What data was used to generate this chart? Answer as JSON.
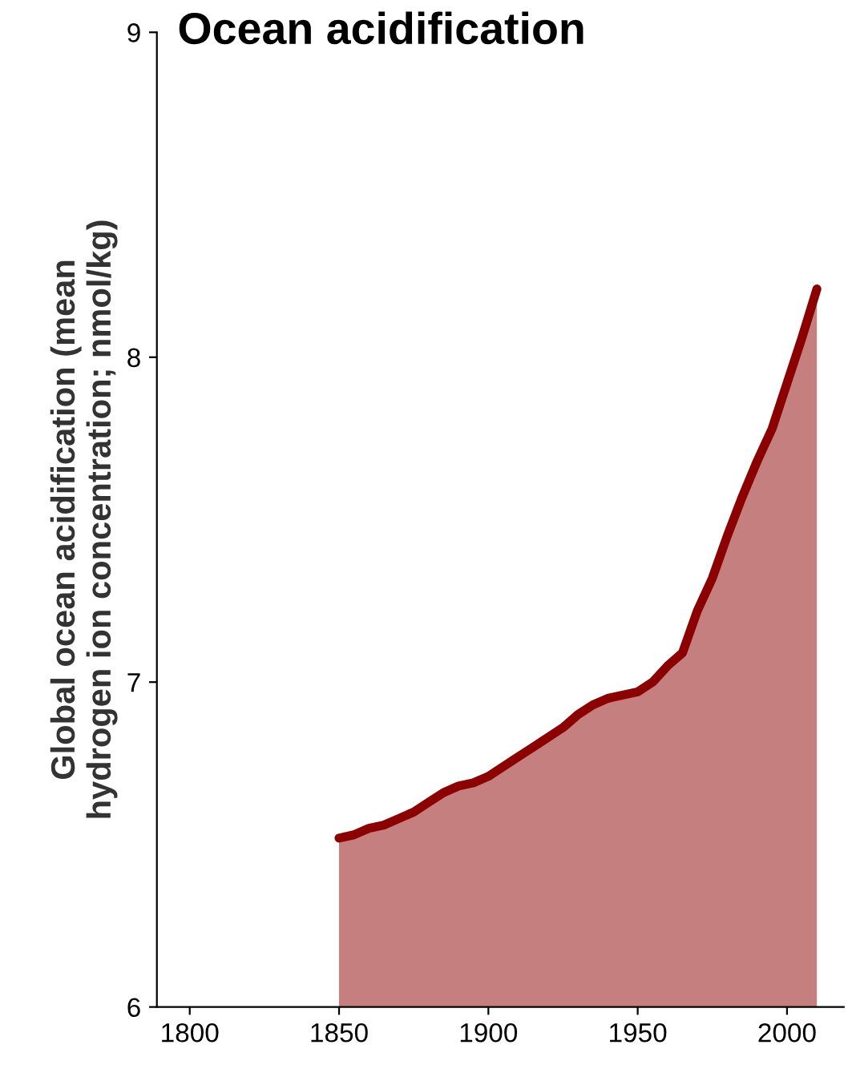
{
  "chart_data": {
    "type": "area",
    "title": "Ocean acidification",
    "ylabel": "Global ocean acidification (mean\nhydrogen ion concentration; nmol/kg)",
    "x": [
      1850,
      1855,
      1860,
      1865,
      1870,
      1875,
      1880,
      1885,
      1890,
      1895,
      1900,
      1905,
      1910,
      1915,
      1920,
      1925,
      1930,
      1935,
      1940,
      1945,
      1950,
      1955,
      1960,
      1965,
      1970,
      1975,
      1980,
      1985,
      1990,
      1995,
      2000,
      2005,
      2010
    ],
    "series": [
      {
        "color": "#8b0000",
        "values": [
          6.52,
          6.53,
          6.55,
          6.56,
          6.58,
          6.6,
          6.63,
          6.66,
          6.68,
          6.69,
          6.71,
          6.74,
          6.77,
          6.8,
          6.83,
          6.86,
          6.9,
          6.93,
          6.95,
          6.96,
          6.97,
          7.0,
          7.05,
          7.09,
          7.22,
          7.32,
          7.45,
          7.57,
          7.68,
          7.78,
          7.92,
          8.06,
          8.21
        ]
      }
    ],
    "xlim": [
      1789,
      2019
    ],
    "xticks": [
      1800,
      1850,
      1900,
      1950,
      2000
    ],
    "ylim": [
      6,
      9
    ],
    "yticks": [
      6,
      7,
      8,
      9
    ],
    "grid": false,
    "legend": false
  }
}
